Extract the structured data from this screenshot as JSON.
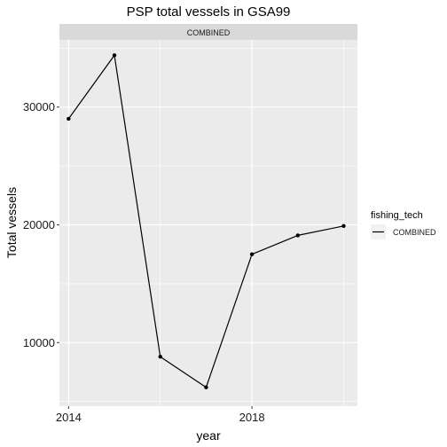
{
  "chart_data": {
    "type": "line",
    "title": "PSP total vessels in GSA99",
    "facet_label": "COMBINED",
    "xlabel": "year",
    "ylabel": "Total vessels",
    "x": [
      2014,
      2015,
      2016,
      2017,
      2018,
      2019,
      2020
    ],
    "series": [
      {
        "name": "COMBINED",
        "values": [
          29000,
          34400,
          8800,
          6200,
          17500,
          19100,
          19900
        ]
      }
    ],
    "xlim": [
      2013.8,
      2020.3
    ],
    "ylim": [
      4600,
      35700
    ],
    "x_ticks": [
      2014,
      2018
    ],
    "y_ticks": [
      10000,
      20000,
      30000
    ],
    "legend": {
      "title": "fishing_tech",
      "position": "right"
    },
    "grid": true,
    "colors": {
      "panel_background": "#ebebeb",
      "strip_background": "#d9d9d9",
      "grid": "#ffffff",
      "line": "#000000"
    }
  }
}
